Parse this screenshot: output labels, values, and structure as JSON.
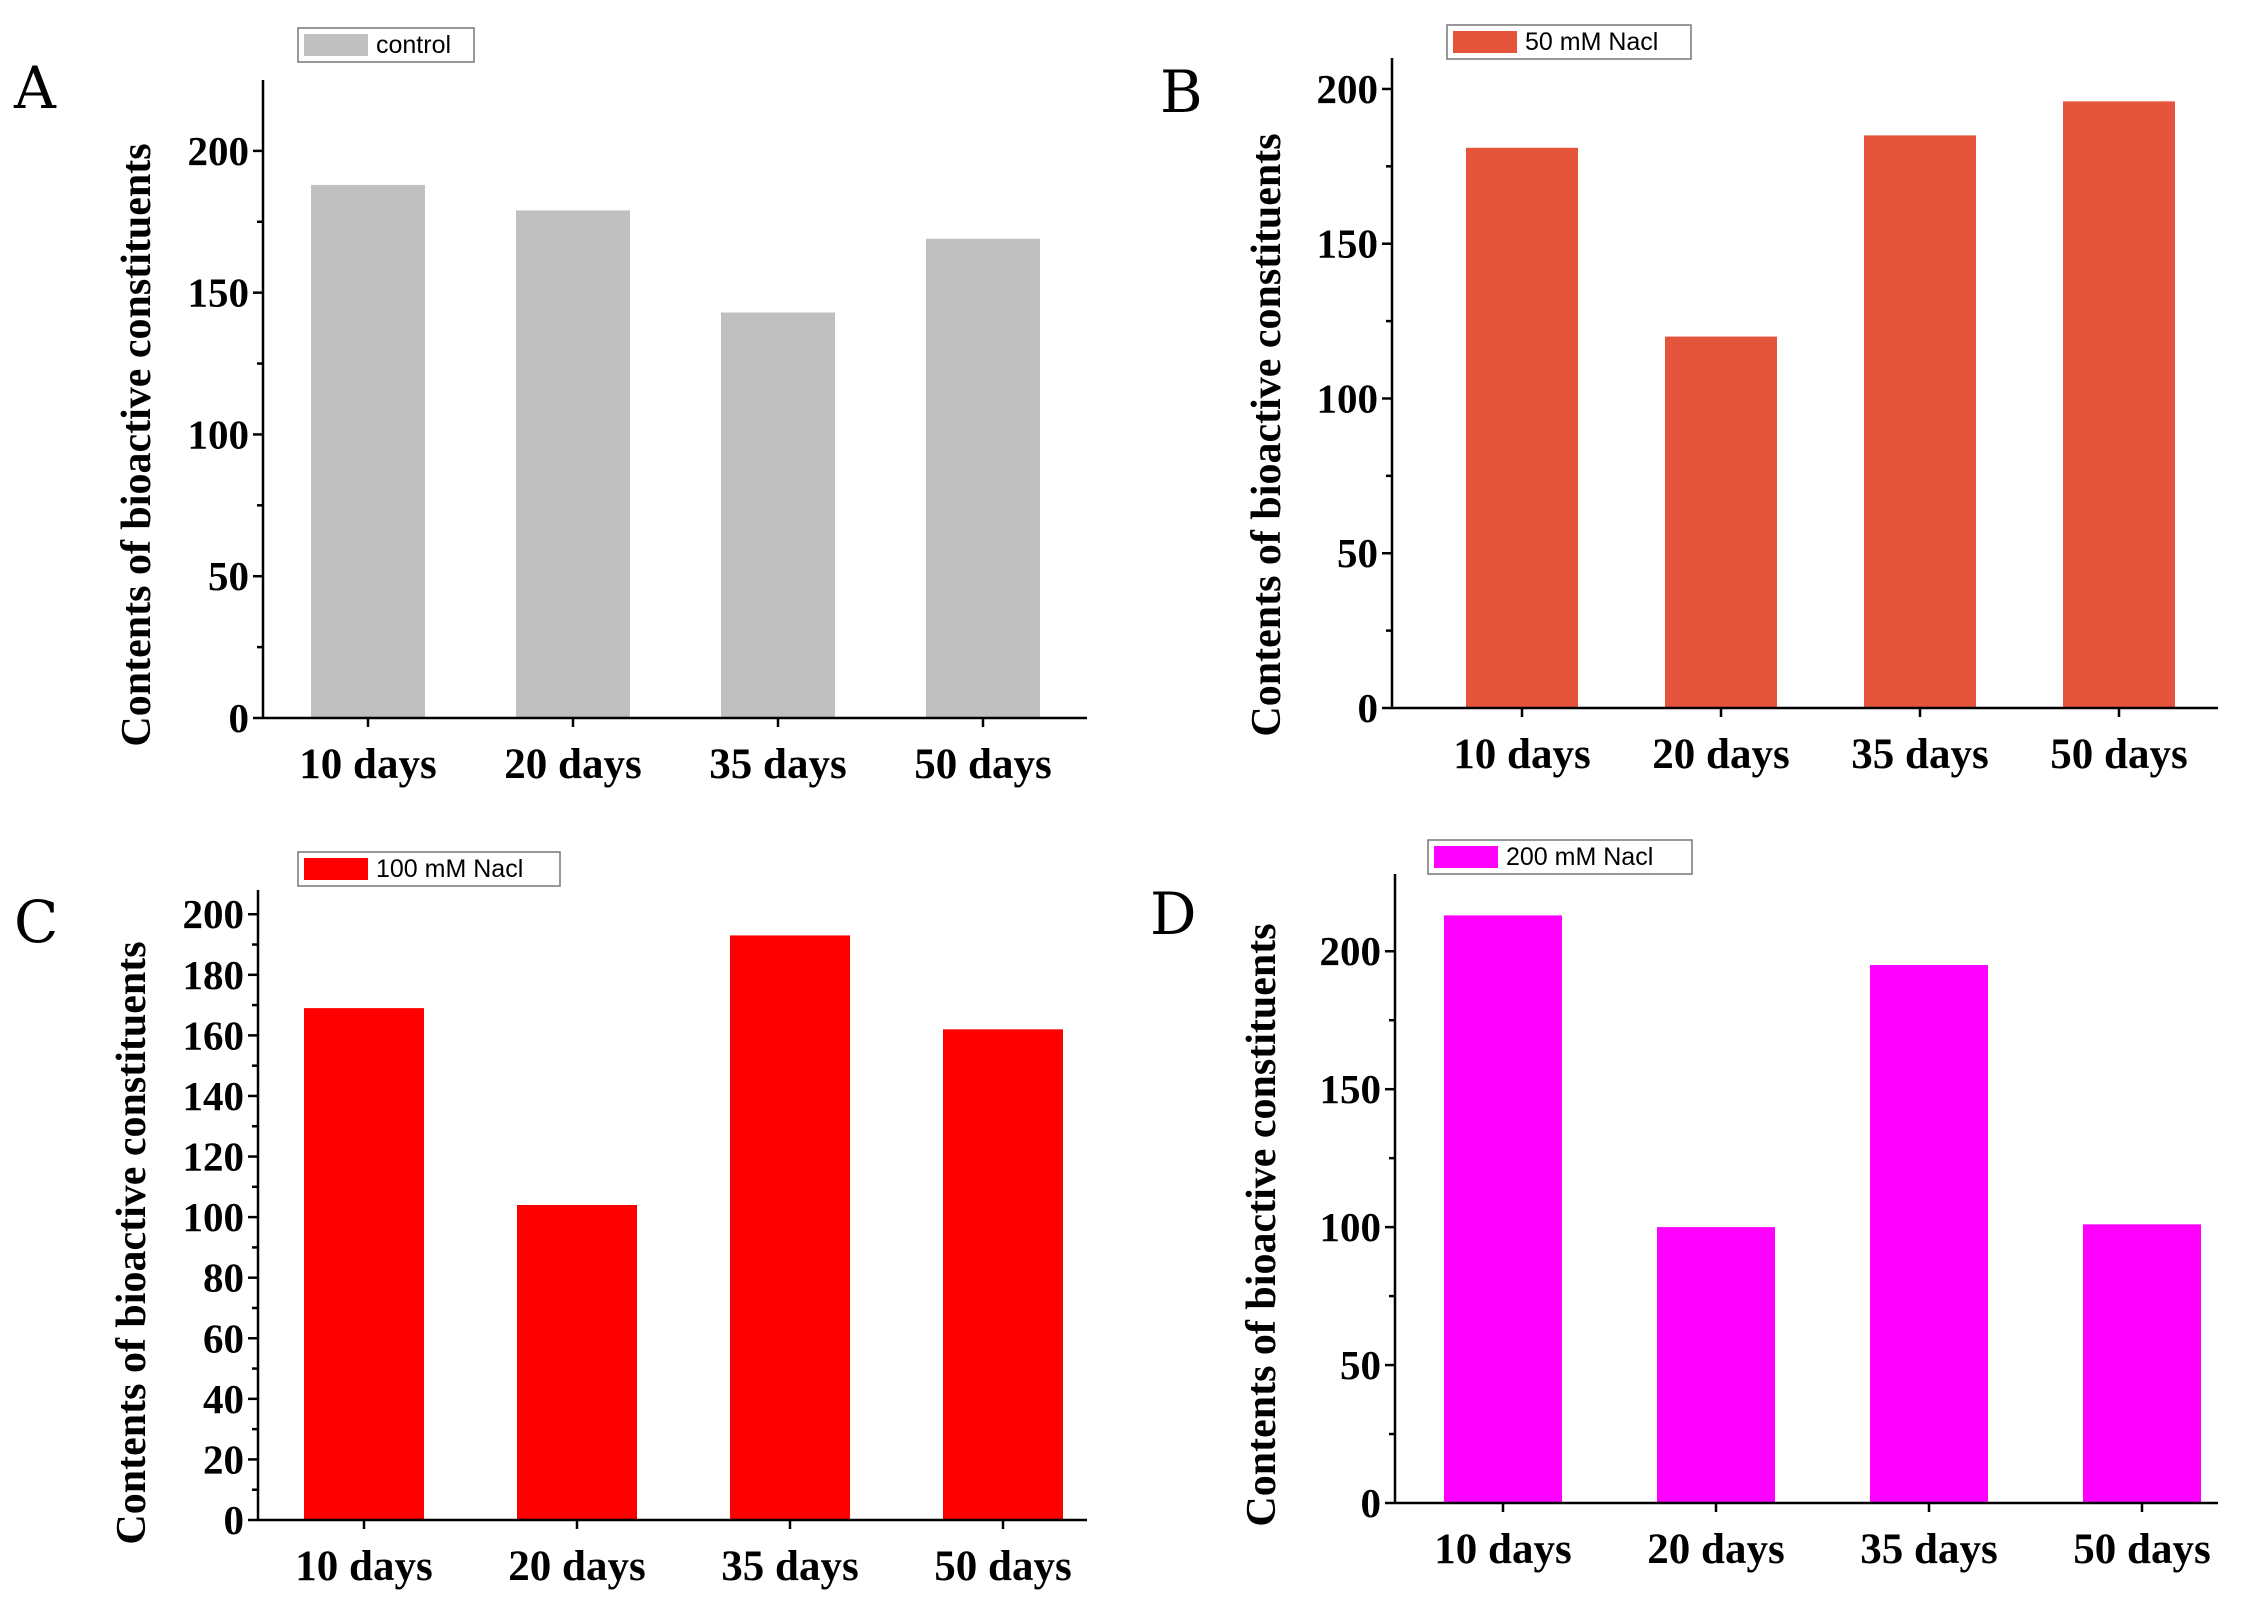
{
  "chart_data": [
    {
      "type": "bar",
      "panel": "A",
      "ylabel": "Contents of bioactive constituents",
      "categories": [
        "10 days",
        "20 days",
        "35 days",
        "50 days"
      ],
      "series": [
        {
          "name": "control",
          "color": "#c0c0c0",
          "values": [
            188,
            179,
            143,
            169
          ]
        }
      ],
      "ylim": [
        0,
        225
      ],
      "yticks": [
        0,
        50,
        100,
        150,
        200
      ],
      "yticklabels": [
        "0",
        "50",
        "100",
        "150",
        "200"
      ],
      "legend_position": "top-left"
    },
    {
      "type": "bar",
      "panel": "B",
      "ylabel": "Contents of bioactive constituents",
      "categories": [
        "10 days",
        "20 days",
        "35 days",
        "50 days"
      ],
      "series": [
        {
          "name": "50 mM Nacl",
          "color": "#e5553b",
          "values": [
            181,
            120,
            185,
            196
          ]
        }
      ],
      "ylim": [
        0,
        210
      ],
      "yticks": [
        0,
        50,
        100,
        150,
        200
      ],
      "yticklabels": [
        "0",
        "50",
        "100",
        "150",
        "200"
      ],
      "legend_position": "top-left"
    },
    {
      "type": "bar",
      "panel": "C",
      "ylabel": "Contents of bioactive constituents",
      "categories": [
        "10 days",
        "20 days",
        "35 days",
        "50 days"
      ],
      "series": [
        {
          "name": "100 mM Nacl",
          "color": "#ff0000",
          "values": [
            169,
            104,
            193,
            162
          ]
        }
      ],
      "ylim": [
        0,
        208
      ],
      "yticks": [
        0,
        20,
        40,
        60,
        80,
        100,
        120,
        140,
        160,
        180,
        200
      ],
      "yticklabels": [
        "0",
        "20",
        "40",
        "60",
        "80",
        "100",
        "120",
        "140",
        "160",
        "180",
        "200"
      ],
      "legend_position": "top-left"
    },
    {
      "type": "bar",
      "panel": "D",
      "ylabel": "Contents of bioactive constituents",
      "categories": [
        "10 days",
        "20 days",
        "35 days",
        "50 days"
      ],
      "series": [
        {
          "name": "200 mM Nacl",
          "color": "#ff00ff",
          "values": [
            213,
            100,
            195,
            101
          ]
        }
      ],
      "ylim": [
        0,
        228
      ],
      "yticks": [
        0,
        50,
        100,
        150,
        200
      ],
      "yticklabels": [
        "0",
        "50",
        "100",
        "150",
        "200"
      ],
      "legend_position": "top-left"
    }
  ]
}
